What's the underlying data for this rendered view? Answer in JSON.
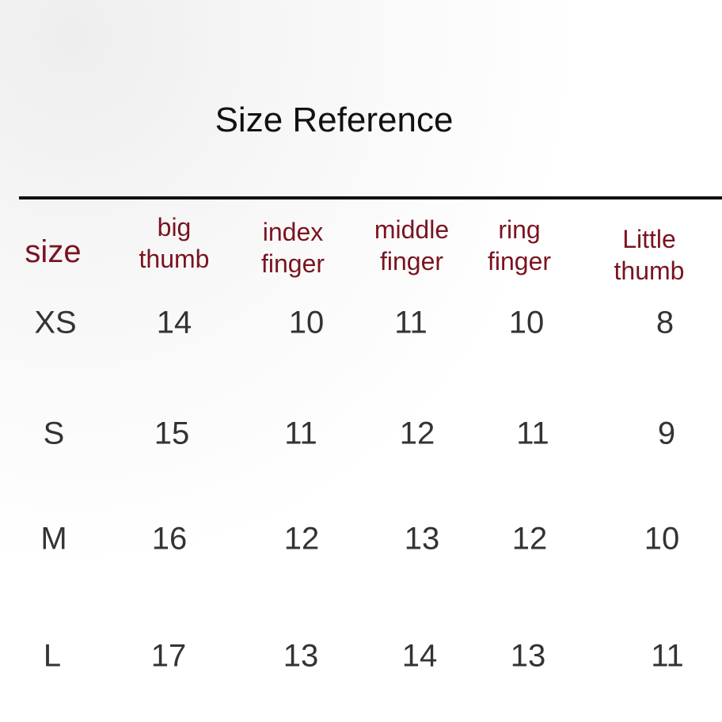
{
  "title": "Size Reference",
  "colors": {
    "header_text": "#7a1420",
    "value_text": "#333333",
    "rule": "#111111"
  },
  "table": {
    "headers": [
      {
        "line1": "size",
        "line2": ""
      },
      {
        "line1": "big",
        "line2": "thumb"
      },
      {
        "line1": "index",
        "line2": "finger"
      },
      {
        "line1": "middle",
        "line2": "finger"
      },
      {
        "line1": "ring",
        "line2": "finger"
      },
      {
        "line1": "Little",
        "line2": "thumb"
      }
    ],
    "rows": [
      [
        "XS",
        "14",
        "10",
        "11",
        "10",
        "8"
      ],
      [
        "S",
        "15",
        "11",
        "12",
        "11",
        "9"
      ],
      [
        "M",
        "16",
        "12",
        "13",
        "12",
        "10"
      ],
      [
        "L",
        "17",
        "13",
        "14",
        "13",
        "11"
      ]
    ]
  }
}
